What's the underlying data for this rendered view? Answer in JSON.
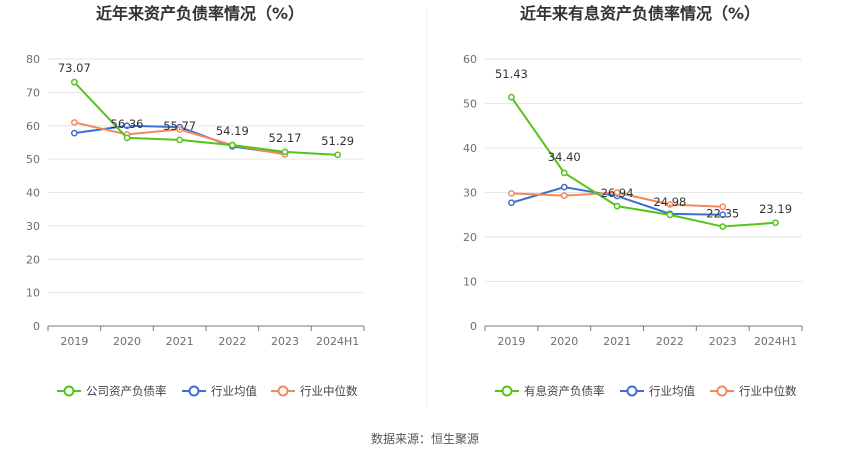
{
  "source_label": "数据来源：恒生聚源",
  "chart_data": [
    {
      "type": "line",
      "title": "近年来资产负债率情况（%）",
      "xlabel": "",
      "ylabel": "",
      "categories": [
        "2019",
        "2020",
        "2021",
        "2022",
        "2023",
        "2024H1"
      ],
      "ylim": [
        0,
        80
      ],
      "yticks": [
        0,
        10,
        20,
        30,
        40,
        50,
        60,
        70,
        80
      ],
      "grid": true,
      "legend_position": "bottom",
      "series": [
        {
          "name": "公司资产负债率",
          "color": "#52c41a",
          "values": [
            73.07,
            56.36,
            55.77,
            54.19,
            52.17,
            51.29
          ],
          "labels": [
            "73.07",
            "56.36",
            "55.77",
            "54.19",
            "52.17",
            "51.29"
          ]
        },
        {
          "name": "行业均值",
          "color": "#3d6fd1",
          "values": [
            57.8,
            60.0,
            59.6,
            53.8,
            51.6,
            null
          ]
        },
        {
          "name": "行业中位数",
          "color": "#f08a5d",
          "values": [
            61.0,
            57.4,
            58.9,
            54.2,
            51.4,
            null
          ]
        }
      ]
    },
    {
      "type": "line",
      "title": "近年来有息资产负债率情况（%）",
      "xlabel": "",
      "ylabel": "",
      "categories": [
        "2019",
        "2020",
        "2021",
        "2022",
        "2023",
        "2024H1"
      ],
      "ylim": [
        0,
        60
      ],
      "yticks": [
        0,
        10,
        20,
        30,
        40,
        50,
        60
      ],
      "grid": true,
      "legend_position": "bottom",
      "series": [
        {
          "name": "有息资产负债率",
          "color": "#52c41a",
          "values": [
            51.43,
            34.4,
            26.94,
            24.98,
            22.35,
            23.19
          ],
          "labels": [
            "51.43",
            "34.40",
            "26.94",
            "24.98",
            "22.35",
            "23.19"
          ]
        },
        {
          "name": "行业均值",
          "color": "#3d6fd1",
          "values": [
            27.7,
            31.2,
            29.2,
            25.2,
            25.0,
            null
          ]
        },
        {
          "name": "行业中位数",
          "color": "#f08a5d",
          "values": [
            29.8,
            29.3,
            30.0,
            27.3,
            26.8,
            null
          ]
        }
      ]
    }
  ]
}
